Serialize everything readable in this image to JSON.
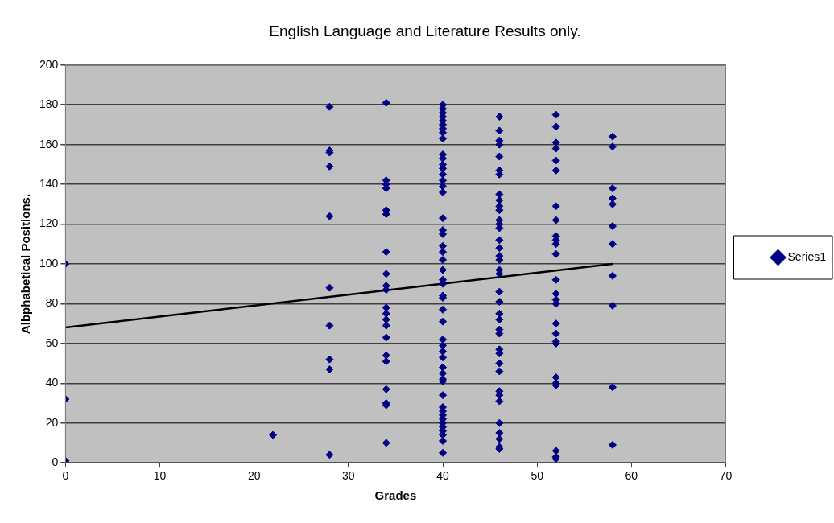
{
  "chart_data": {
    "type": "scatter",
    "title": "English Language and Literature Results only.",
    "xlabel": "Grades",
    "ylabel": "Albphabetical Positions.",
    "xlim": [
      0,
      70
    ],
    "xticks": [
      0,
      10,
      20,
      30,
      40,
      50,
      60,
      70
    ],
    "ylim": [
      0,
      200
    ],
    "yticks": [
      0,
      20,
      40,
      60,
      80,
      100,
      120,
      140,
      160,
      180,
      200
    ],
    "grid": "y",
    "legend": "right",
    "marker": "diamond",
    "series": [
      {
        "name": "Series1",
        "color": "#000080",
        "x": [
          0,
          0,
          0,
          22,
          28,
          28,
          28,
          28,
          28,
          28,
          28,
          28,
          28,
          28,
          34,
          34,
          34,
          34,
          34,
          34,
          34,
          34,
          34,
          34,
          34,
          34,
          34,
          34,
          34,
          34,
          34,
          34,
          34,
          34,
          34,
          40,
          40,
          40,
          40,
          40,
          40,
          40,
          40,
          40,
          40,
          40,
          40,
          40,
          40,
          40,
          40,
          40,
          40,
          40,
          40,
          40,
          40,
          40,
          40,
          40,
          40,
          40,
          40,
          40,
          40,
          40,
          40,
          40,
          40,
          40,
          40,
          40,
          40,
          40,
          40,
          40,
          40,
          40,
          40,
          40,
          40,
          40,
          40,
          40,
          46,
          46,
          46,
          46,
          46,
          46,
          46,
          46,
          46,
          46,
          46,
          46,
          46,
          46,
          46,
          46,
          46,
          46,
          46,
          46,
          46,
          46,
          46,
          46,
          46,
          46,
          46,
          46,
          46,
          46,
          46,
          46,
          46,
          46,
          46,
          46,
          46,
          46,
          52,
          52,
          52,
          52,
          52,
          52,
          52,
          52,
          52,
          52,
          52,
          52,
          52,
          52,
          52,
          52,
          52,
          52,
          52,
          52,
          52,
          52,
          52,
          52,
          52,
          52,
          58,
          58,
          58,
          58,
          58,
          58,
          58,
          58,
          58,
          58,
          58
        ],
        "values": [
          100,
          32,
          1,
          14,
          179,
          157,
          156,
          149,
          124,
          88,
          69,
          52,
          47,
          4,
          181,
          142,
          140,
          138,
          127,
          125,
          106,
          95,
          89,
          87,
          78,
          75,
          72,
          69,
          63,
          54,
          51,
          37,
          30,
          29,
          10,
          180,
          178,
          176,
          174,
          172,
          170,
          168,
          166,
          163,
          155,
          153,
          150,
          148,
          145,
          142,
          139,
          136,
          123,
          117,
          115,
          109,
          106,
          102,
          97,
          92,
          90,
          84,
          83,
          77,
          71,
          62,
          59,
          56,
          53,
          48,
          45,
          42,
          41,
          34,
          28,
          26,
          24,
          22,
          20,
          18,
          16,
          14,
          11,
          5,
          174,
          167,
          162,
          160,
          154,
          147,
          145,
          135,
          132,
          129,
          127,
          122,
          120,
          118,
          112,
          108,
          104,
          102,
          97,
          95,
          86,
          81,
          75,
          72,
          67,
          65,
          57,
          55,
          50,
          46,
          36,
          34,
          31,
          20,
          15,
          12,
          8,
          7,
          175,
          169,
          161,
          158,
          152,
          147,
          129,
          122,
          114,
          112,
          110,
          105,
          92,
          85,
          82,
          80,
          70,
          65,
          61,
          60,
          43,
          40,
          39,
          6,
          3,
          2,
          164,
          159,
          138,
          133,
          130,
          119,
          110,
          94,
          79,
          38,
          9
        ]
      },
      {
        "type": "line",
        "marker": "none",
        "color": "#000000",
        "x": [
          0,
          58
        ],
        "values": [
          68,
          100
        ]
      }
    ]
  }
}
